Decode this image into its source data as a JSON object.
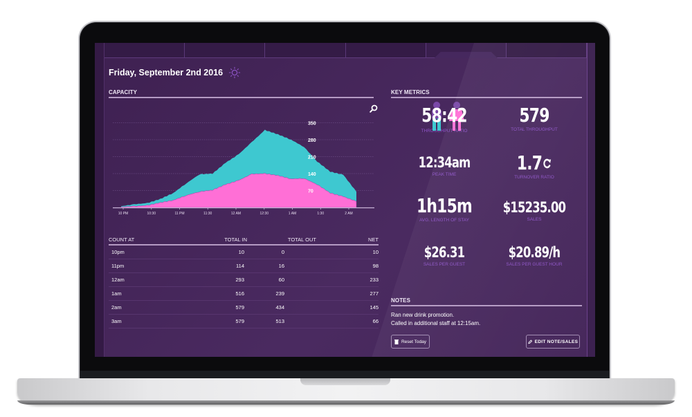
{
  "header": {
    "date": "Friday, September 2nd 2016",
    "weather_icon": "sun-icon",
    "nav_tabs_count": 6,
    "active_tab_index": 4
  },
  "capacity": {
    "section_title": "CAPACITY",
    "zoom_icon": "magnifier-icon"
  },
  "chart_data": {
    "type": "area",
    "title": "CAPACITY",
    "xlabel": "",
    "ylabel": "",
    "x_ticks": [
      "10 PM",
      "10:30",
      "11 PM",
      "11:30",
      "12 AM",
      "12:30",
      "1 AM",
      "1:30",
      "2 AM"
    ],
    "y_ticks": [
      70,
      140,
      210,
      280,
      350
    ],
    "ylim": [
      0,
      380
    ],
    "grid": true,
    "stacked": true,
    "series": [
      {
        "name": "female",
        "color": "#ff6fd6",
        "x": [
          "9:55 PM",
          "10:00",
          "10:15",
          "10:30",
          "10:45",
          "11:00",
          "11:15",
          "11:30",
          "11:45",
          "12:00",
          "12:15",
          "12:30",
          "12:45",
          "1:00",
          "1:15",
          "1:30",
          "1:45",
          "2:00",
          "2:10"
        ],
        "values": [
          2,
          5,
          8,
          20,
          30,
          50,
          65,
          72,
          95,
          112,
          138,
          140,
          132,
          118,
          120,
          95,
          60,
          45,
          25
        ]
      },
      {
        "name": "male",
        "color": "#3ec8d0",
        "x": [
          "9:55 PM",
          "10:00",
          "10:15",
          "10:30",
          "10:45",
          "11:00",
          "11:15",
          "11:30",
          "11:45",
          "12:00",
          "12:15",
          "12:30",
          "12:45",
          "1:00",
          "1:15",
          "1:30",
          "1:45",
          "2:00",
          "2:10"
        ],
        "values": [
          3,
          8,
          10,
          15,
          30,
          50,
          72,
          68,
          90,
          108,
          132,
          180,
          170,
          162,
          130,
          95,
          88,
          90,
          40
        ]
      }
    ]
  },
  "count_table": {
    "columns": [
      "COUNT AT",
      "TOTAL IN",
      "TOTAL OUT",
      "NET"
    ],
    "rows": [
      [
        "10pm",
        "10",
        "0",
        "10"
      ],
      [
        "11pm",
        "114",
        "16",
        "98"
      ],
      [
        "12am",
        "293",
        "60",
        "233"
      ],
      [
        "1am",
        "516",
        "239",
        "277"
      ],
      [
        "2am",
        "579",
        "434",
        "145"
      ],
      [
        "3am",
        "579",
        "513",
        "66"
      ]
    ]
  },
  "key_metrics": {
    "section_title": "KEY METRICS",
    "items": [
      {
        "value": "58:42",
        "label": "THROUGHPUT RATIO",
        "icon": "male-female-icon"
      },
      {
        "value": "579",
        "label": "TOTAL THROUGHPUT"
      },
      {
        "value": "12:34am",
        "label": "PEAK TIME"
      },
      {
        "value": "1.7",
        "label": "TURNOVER RATIO",
        "icon": "refresh-icon"
      },
      {
        "value": "1h15m",
        "label": "AVG. LENGTH OF STAY"
      },
      {
        "value": "$15235.00",
        "label": "SALES"
      },
      {
        "value": "$26.31",
        "label": "SALES PER GUEST"
      },
      {
        "value": "$20.89/h",
        "label": "SALES PER GUEST HOUR"
      }
    ]
  },
  "notes": {
    "section_title": "NOTES",
    "lines": [
      "Ran new drink promotion.",
      "Called in additional staff at 12:15am."
    ],
    "reset_button": "Reset Today",
    "edit_button": "EDIT NOTE/SALES"
  },
  "colors": {
    "background": "#3e2151",
    "accent_label": "#8e54c7",
    "male": "#3ec8d0",
    "female": "#ff6fd6"
  }
}
